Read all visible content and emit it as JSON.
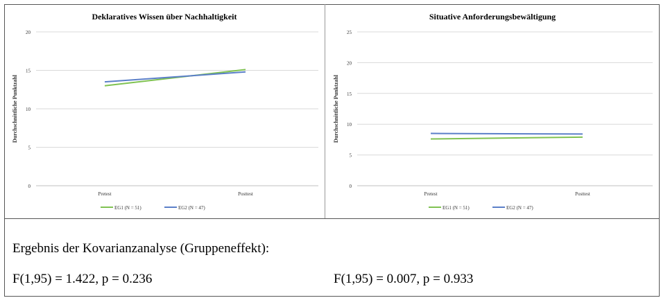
{
  "colors": {
    "series1": "#7fc251",
    "series2": "#5b7fc8",
    "grid": "#d9d9d9",
    "axis": "#bfbfbf"
  },
  "chart_data": [
    {
      "type": "line",
      "title": "Deklaratives Wissen über Nachhaltigkeit",
      "xlabel": "",
      "ylabel": "Durchschnittliche Punktzahl",
      "categories": [
        "Pretest",
        "Posttest"
      ],
      "ylim": [
        0,
        20
      ],
      "yticks": [
        "0",
        "5",
        "10",
        "15",
        "20"
      ],
      "grid": true,
      "legend": "bottom",
      "series": [
        {
          "name": "EG1 (N = 51)",
          "values": [
            13.0,
            15.1
          ]
        },
        {
          "name": "EG2 (N = 47)",
          "values": [
            13.5,
            14.8
          ]
        }
      ]
    },
    {
      "type": "line",
      "title": "Situative Anforderungsbewältigung",
      "xlabel": "",
      "ylabel": "Durchschnittliche Punktzahl",
      "categories": [
        "Pretest",
        "Posttest"
      ],
      "ylim": [
        0,
        25
      ],
      "yticks": [
        "0",
        "5",
        "10",
        "15",
        "20",
        "25"
      ],
      "grid": true,
      "legend": "bottom",
      "series": [
        {
          "name": "EG1 (N = 51)",
          "values": [
            7.6,
            7.9
          ]
        },
        {
          "name": "EG2 (N = 47)",
          "values": [
            8.5,
            8.4
          ]
        }
      ]
    }
  ],
  "results": {
    "heading": "Ergebnis der Kovarianzanalyse (Gruppeneffekt):",
    "left": "F(1,95) = 1.422, p = 0.236",
    "right": "F(1,95) = 0.007, p = 0.933"
  }
}
